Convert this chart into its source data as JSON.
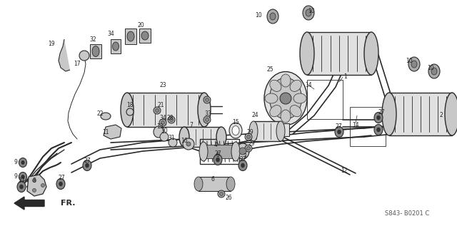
{
  "bg_color": "#f5f5f0",
  "line_color": "#2a2a2a",
  "diagram_code": "S843- B0201 C",
  "fr_label": "FR.",
  "title_color": "#222222",
  "gray_fill": "#c8c8c8",
  "dark_gray": "#888888",
  "light_gray": "#e0e0e0",
  "mid_gray": "#aaaaaa"
}
